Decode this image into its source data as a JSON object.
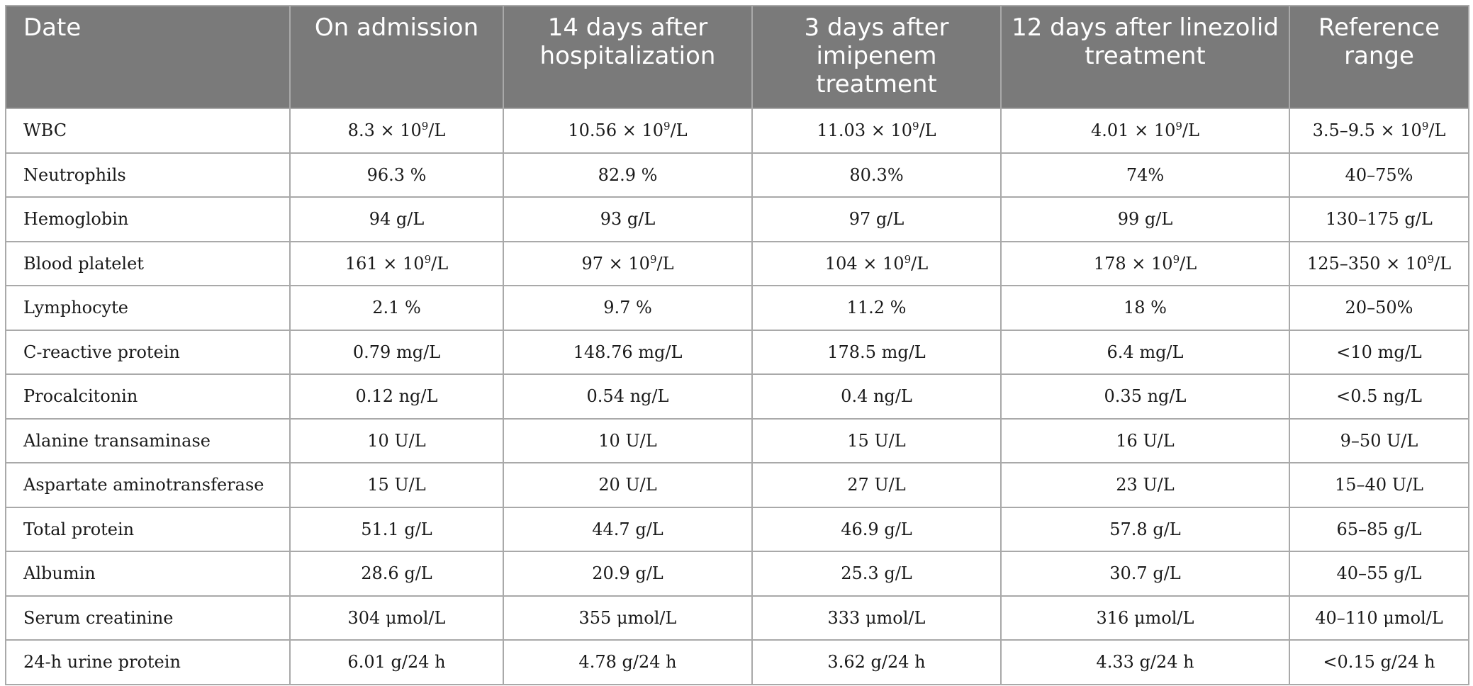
{
  "table": {
    "headers": [
      "Date",
      "On admission",
      "14 days after hospitalization",
      "3 days after imipenem treatment",
      "12 days after linezolid treatment",
      "Reference range"
    ],
    "rows": [
      {
        "label": "WBC",
        "cells": [
          {
            "pre": "8.3 × 10",
            "sup": "9",
            "post": "/L"
          },
          {
            "pre": "10.56 × 10",
            "sup": "9",
            "post": "/L"
          },
          {
            "pre": "11.03 × 10",
            "sup": "9",
            "post": "/L"
          },
          {
            "pre": "4.01 × 10",
            "sup": "9",
            "post": "/L"
          },
          {
            "pre": "3.5–9.5 × 10",
            "sup": "9",
            "post": "/L"
          }
        ]
      },
      {
        "label": "Neutrophils",
        "cells": [
          {
            "pre": "96.3 %"
          },
          {
            "pre": "82.9 %"
          },
          {
            "pre": "80.3%"
          },
          {
            "pre": "74%"
          },
          {
            "pre": "40–75%"
          }
        ]
      },
      {
        "label": "Hemoglobin",
        "cells": [
          {
            "pre": "94 g/L"
          },
          {
            "pre": "93 g/L"
          },
          {
            "pre": "97 g/L"
          },
          {
            "pre": "99 g/L"
          },
          {
            "pre": "130–175 g/L"
          }
        ]
      },
      {
        "label": "Blood platelet",
        "cells": [
          {
            "pre": "161 × 10",
            "sup": "9",
            "post": "/L"
          },
          {
            "pre": "97 × 10",
            "sup": "9",
            "post": "/L"
          },
          {
            "pre": "104 × 10",
            "sup": "9",
            "post": "/L"
          },
          {
            "pre": "178 × 10",
            "sup": "9",
            "post": "/L"
          },
          {
            "pre": "125–350 × 10",
            "sup": "9",
            "post": "/L"
          }
        ]
      },
      {
        "label": "Lymphocyte",
        "cells": [
          {
            "pre": "2.1 %"
          },
          {
            "pre": "9.7 %"
          },
          {
            "pre": "11.2 %"
          },
          {
            "pre": "18 %"
          },
          {
            "pre": "20–50%"
          }
        ]
      },
      {
        "label": "C-reactive protein",
        "cells": [
          {
            "pre": "0.79 mg/L"
          },
          {
            "pre": "148.76 mg/L"
          },
          {
            "pre": "178.5 mg/L"
          },
          {
            "pre": "6.4 mg/L"
          },
          {
            "pre": "<10 mg/L"
          }
        ]
      },
      {
        "label": "Procalcitonin",
        "cells": [
          {
            "pre": "0.12 ng/L"
          },
          {
            "pre": "0.54 ng/L"
          },
          {
            "pre": "0.4 ng/L"
          },
          {
            "pre": "0.35 ng/L"
          },
          {
            "pre": "<0.5 ng/L"
          }
        ]
      },
      {
        "label": "Alanine transaminase",
        "cells": [
          {
            "pre": "10 U/L"
          },
          {
            "pre": "10 U/L"
          },
          {
            "pre": "15 U/L"
          },
          {
            "pre": "16 U/L"
          },
          {
            "pre": "9–50 U/L"
          }
        ]
      },
      {
        "label": "Aspartate aminotransferase",
        "cells": [
          {
            "pre": "15 U/L"
          },
          {
            "pre": "20 U/L"
          },
          {
            "pre": "27 U/L"
          },
          {
            "pre": "23 U/L"
          },
          {
            "pre": "15–40 U/L"
          }
        ]
      },
      {
        "label": "Total protein",
        "cells": [
          {
            "pre": "51.1 g/L"
          },
          {
            "pre": "44.7 g/L"
          },
          {
            "pre": "46.9 g/L"
          },
          {
            "pre": "57.8 g/L"
          },
          {
            "pre": "65–85 g/L"
          }
        ]
      },
      {
        "label": "Albumin",
        "cells": [
          {
            "pre": "28.6 g/L"
          },
          {
            "pre": "20.9 g/L"
          },
          {
            "pre": "25.3 g/L"
          },
          {
            "pre": "30.7 g/L"
          },
          {
            "pre": "40–55 g/L"
          }
        ]
      },
      {
        "label": "Serum creatinine",
        "cells": [
          {
            "pre": "304 μmol/L"
          },
          {
            "pre": "355 μmol/L"
          },
          {
            "pre": "333 μmol/L"
          },
          {
            "pre": "316 μmol/L"
          },
          {
            "pre": "40–110 μmol/L"
          }
        ]
      },
      {
        "label": "24-h urine protein",
        "cells": [
          {
            "pre": "6.01 g/24 h"
          },
          {
            "pre": "4.78 g/24 h"
          },
          {
            "pre": "3.62 g/24 h"
          },
          {
            "pre": "4.33 g/24 h"
          },
          {
            "pre": "<0.15 g/24 h"
          }
        ]
      }
    ]
  }
}
